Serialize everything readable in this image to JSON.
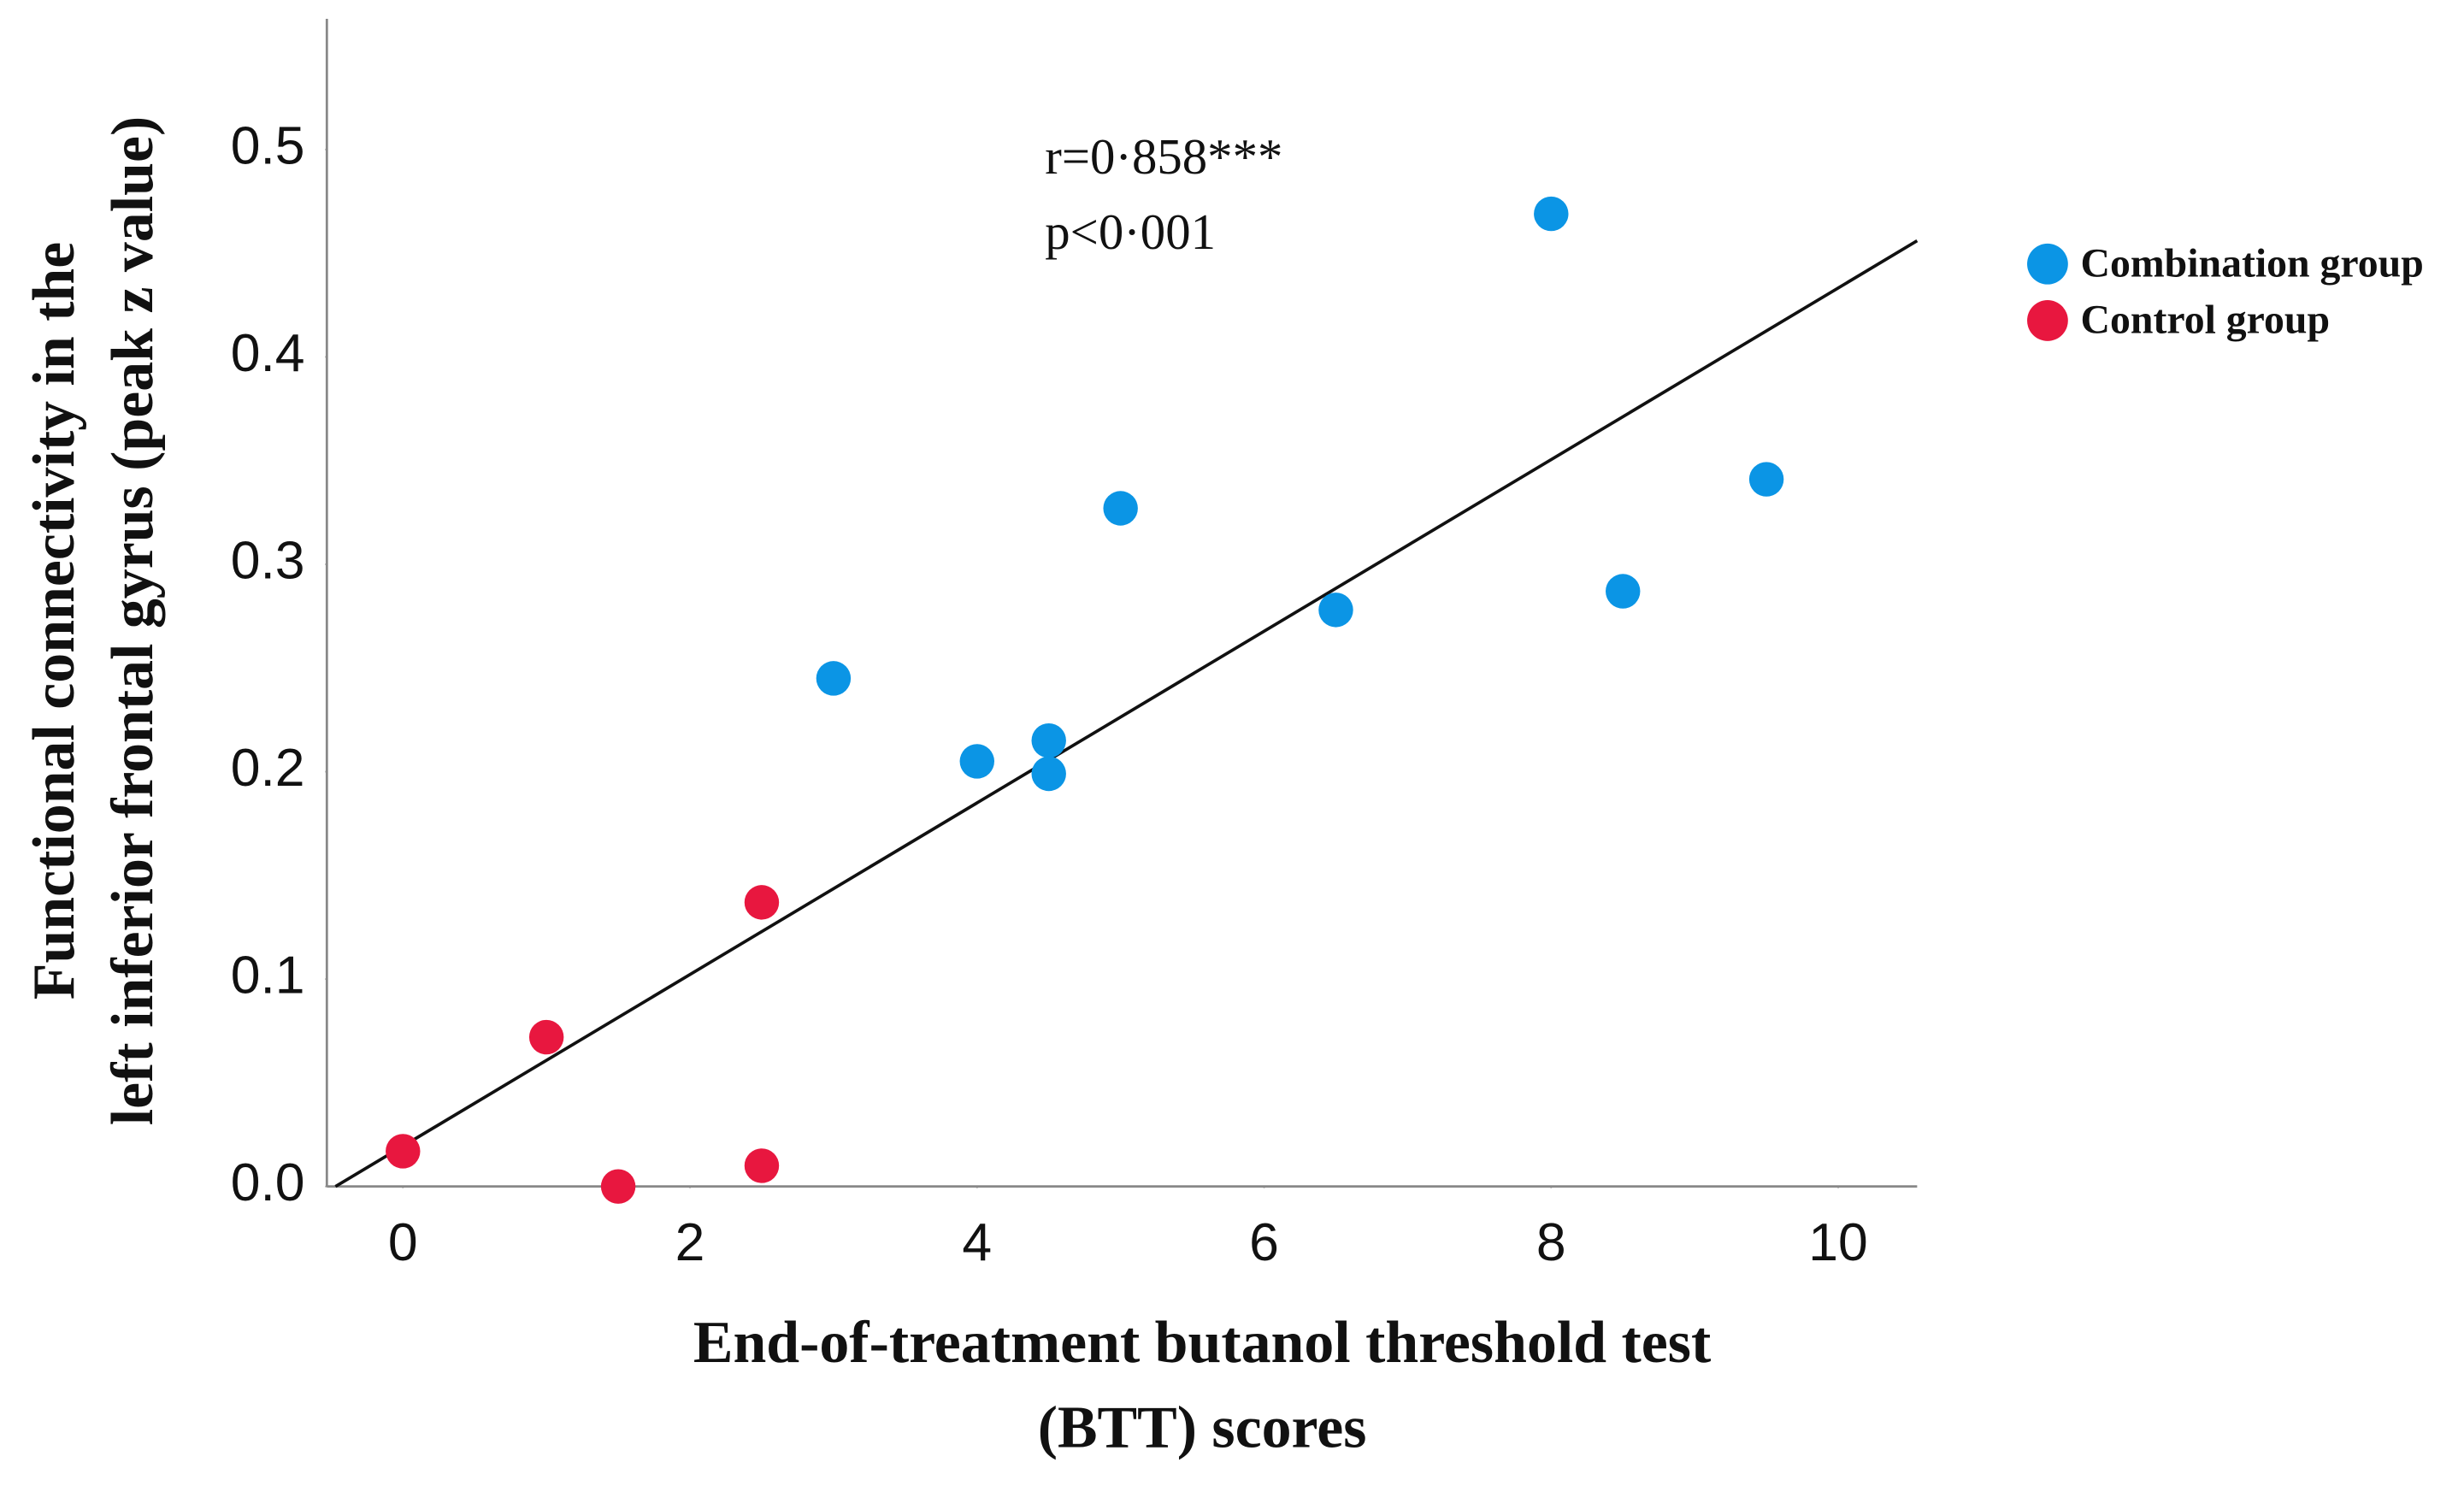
{
  "chart_data": {
    "type": "scatter",
    "x_label": [
      "End-of-treatment butanol threshold test",
      "(BTT) scores"
    ],
    "y_label": [
      "Functional connectivity in the",
      "left inferior frontal gyrus (peak z value)"
    ],
    "annotation": [
      "r=0·858***",
      "p<0·001"
    ],
    "series": [
      {
        "name": "Combination group",
        "color": "#0b95e5",
        "x": [
          8,
          9.5,
          5,
          8.5,
          6.5,
          3,
          4.5,
          4,
          4.5
        ],
        "values": [
          0.469,
          0.341,
          0.327,
          0.287,
          0.278,
          0.245,
          0.215,
          0.205,
          0.199
        ]
      },
      {
        "name": "Control group",
        "color": "#e8173f",
        "x": [
          2.5,
          1,
          0,
          2.5,
          1.5
        ],
        "values": [
          0.137,
          0.072,
          0.017,
          0.01,
          0.0
        ]
      }
    ],
    "fit_line": {
      "x": [
        -0.47,
        10.55
      ],
      "y": [
        0,
        0.456
      ],
      "color": "#111111"
    },
    "xlim": [
      -0.53,
      10.55
    ],
    "xticks": [
      0,
      2,
      4,
      6,
      8,
      10
    ],
    "ylim": [
      0,
      0.563
    ],
    "yticks": [
      {
        "value": 0,
        "label": "0.0"
      },
      0.1,
      0.2,
      0.3,
      0.4,
      0.5
    ],
    "grid": false,
    "legend": "right"
  }
}
